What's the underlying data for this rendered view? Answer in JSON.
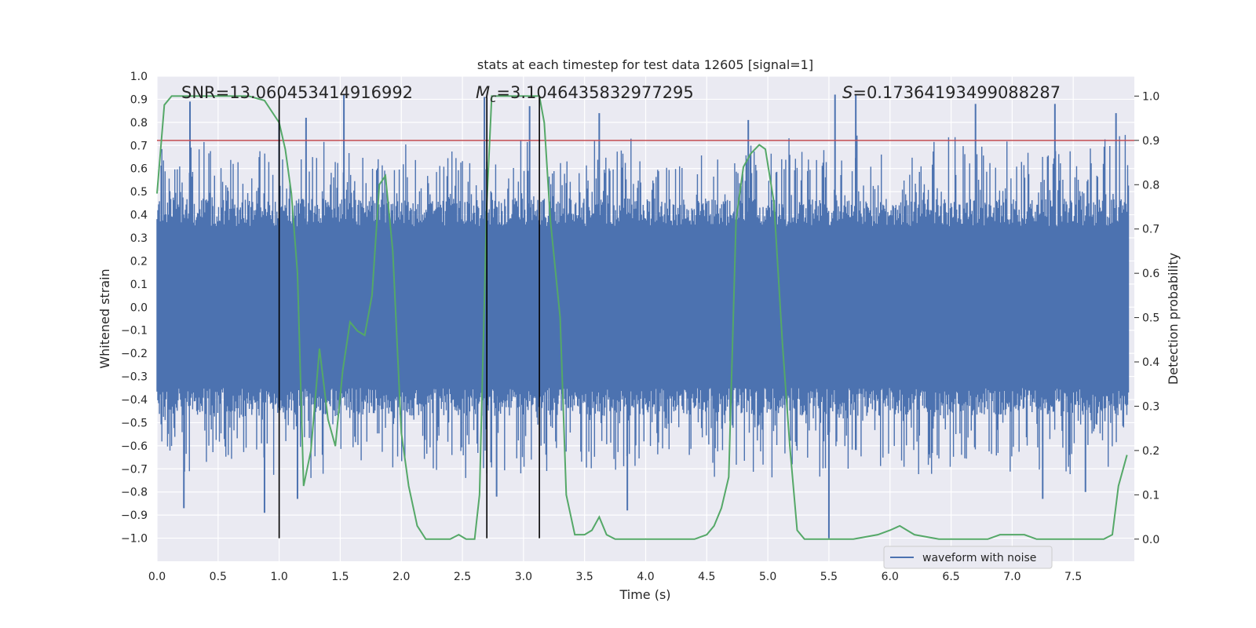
{
  "chart_data": {
    "type": "line",
    "title": "stats at each timestep for test data 12605 [signal=1]",
    "xlabel": "Time (s)",
    "ylabel": "Whitened strain",
    "y2label": "Detection probability",
    "xlim": [
      0.0,
      8.0
    ],
    "ylim": [
      -1.1,
      1.0
    ],
    "y2lim": [
      -0.05,
      1.045
    ],
    "xticks": [
      "0.0",
      "0.5",
      "1.0",
      "1.5",
      "2.0",
      "2.5",
      "3.0",
      "3.5",
      "4.0",
      "4.5",
      "5.0",
      "5.5",
      "6.0",
      "6.5",
      "7.0",
      "7.5"
    ],
    "yticks": [
      "1.0",
      "0.9",
      "0.8",
      "0.7",
      "0.6",
      "0.5",
      "0.4",
      "0.3",
      "0.2",
      "0.1",
      "0.0",
      "-0.1",
      "-0.2",
      "-0.3",
      "-0.4",
      "-0.5",
      "-0.6",
      "-0.7",
      "-0.8",
      "-0.9",
      "-1.0"
    ],
    "y2ticks": [
      "1.0",
      "0.9",
      "0.8",
      "0.7",
      "0.6",
      "0.5",
      "0.4",
      "0.3",
      "0.2",
      "0.1",
      "0.0"
    ],
    "annotations": {
      "snr": "SNR=13.060453414916992",
      "mc_symbol": "M",
      "mc_sub": "c",
      "mc_value": "=3.1046435832977295",
      "s_symbol": "S",
      "s_value": "=0.17364193499088287"
    },
    "threshold": 0.9,
    "vlines": [
      1.0,
      2.7,
      3.13
    ],
    "waveform": {
      "name": "waveform with noise",
      "color": "#4c72b0",
      "sample_count": 1200,
      "body_amplitude": 0.35,
      "peaks": [
        {
          "x": 0.22,
          "y": -0.87
        },
        {
          "x": 0.27,
          "y": 0.89
        },
        {
          "x": 0.88,
          "y": -0.89
        },
        {
          "x": 1.0,
          "y": 0.81
        },
        {
          "x": 1.15,
          "y": -0.83
        },
        {
          "x": 1.22,
          "y": 0.82
        },
        {
          "x": 1.53,
          "y": 0.92
        },
        {
          "x": 2.68,
          "y": 0.91
        },
        {
          "x": 2.78,
          "y": -0.82
        },
        {
          "x": 3.05,
          "y": 0.87
        },
        {
          "x": 3.62,
          "y": 0.84
        },
        {
          "x": 3.85,
          "y": -0.88
        },
        {
          "x": 4.84,
          "y": 0.81
        },
        {
          "x": 5.5,
          "y": -1.0
        },
        {
          "x": 5.55,
          "y": 0.92
        },
        {
          "x": 5.72,
          "y": 0.92
        },
        {
          "x": 6.7,
          "y": 0.88
        },
        {
          "x": 7.35,
          "y": 0.88
        },
        {
          "x": 7.85,
          "y": 0.84
        },
        {
          "x": 7.25,
          "y": -0.83
        },
        {
          "x": 7.6,
          "y": -0.8
        }
      ]
    },
    "detection_probability": {
      "color": "#55a868",
      "x": [
        0.0,
        0.06,
        0.12,
        0.2,
        0.4,
        0.6,
        0.75,
        0.88,
        1.0,
        1.05,
        1.1,
        1.15,
        1.2,
        1.26,
        1.33,
        1.4,
        1.46,
        1.52,
        1.58,
        1.64,
        1.7,
        1.76,
        1.82,
        1.87,
        1.93,
        2.0,
        2.06,
        2.13,
        2.2,
        2.27,
        2.33,
        2.4,
        2.47,
        2.53,
        2.6,
        2.64,
        2.7,
        2.74,
        2.78,
        2.85,
        3.0,
        3.13,
        3.17,
        3.22,
        3.3,
        3.35,
        3.42,
        3.5,
        3.56,
        3.62,
        3.68,
        3.75,
        3.85,
        4.0,
        4.2,
        4.4,
        4.5,
        4.56,
        4.62,
        4.68,
        4.74,
        4.8,
        4.86,
        4.93,
        4.98,
        5.05,
        5.12,
        5.18,
        5.24,
        5.3,
        5.5,
        5.7,
        5.9,
        6.0,
        6.08,
        6.2,
        6.4,
        6.6,
        6.8,
        6.9,
        7.0,
        7.05,
        7.1,
        7.2,
        7.4,
        7.6,
        7.75,
        7.82,
        7.87,
        7.94
      ],
      "y": [
        0.78,
        0.98,
        1.0,
        1.0,
        1.0,
        1.0,
        1.0,
        0.99,
        0.94,
        0.88,
        0.78,
        0.6,
        0.12,
        0.2,
        0.43,
        0.27,
        0.21,
        0.38,
        0.49,
        0.47,
        0.46,
        0.55,
        0.8,
        0.82,
        0.65,
        0.24,
        0.12,
        0.03,
        0.0,
        0.0,
        0.0,
        0.0,
        0.01,
        0.0,
        0.0,
        0.1,
        0.76,
        1.0,
        1.0,
        1.0,
        1.0,
        1.0,
        0.94,
        0.72,
        0.5,
        0.1,
        0.01,
        0.01,
        0.02,
        0.05,
        0.01,
        0.0,
        0.0,
        0.0,
        0.0,
        0.0,
        0.01,
        0.03,
        0.07,
        0.14,
        0.72,
        0.84,
        0.87,
        0.89,
        0.88,
        0.76,
        0.44,
        0.21,
        0.02,
        0.0,
        0.0,
        0.0,
        0.01,
        0.02,
        0.03,
        0.01,
        0.0,
        0.0,
        0.0,
        0.01,
        0.01,
        0.01,
        0.01,
        0.0,
        0.0,
        0.0,
        0.0,
        0.01,
        0.12,
        0.19
      ]
    },
    "legend": {
      "label": "waveform with noise",
      "location": "lower-right"
    },
    "colors": {
      "background": "#eaeaf2",
      "grid": "#ffffff",
      "threshold": "#c44e52",
      "vline": "#000000",
      "text": "#262626"
    }
  }
}
